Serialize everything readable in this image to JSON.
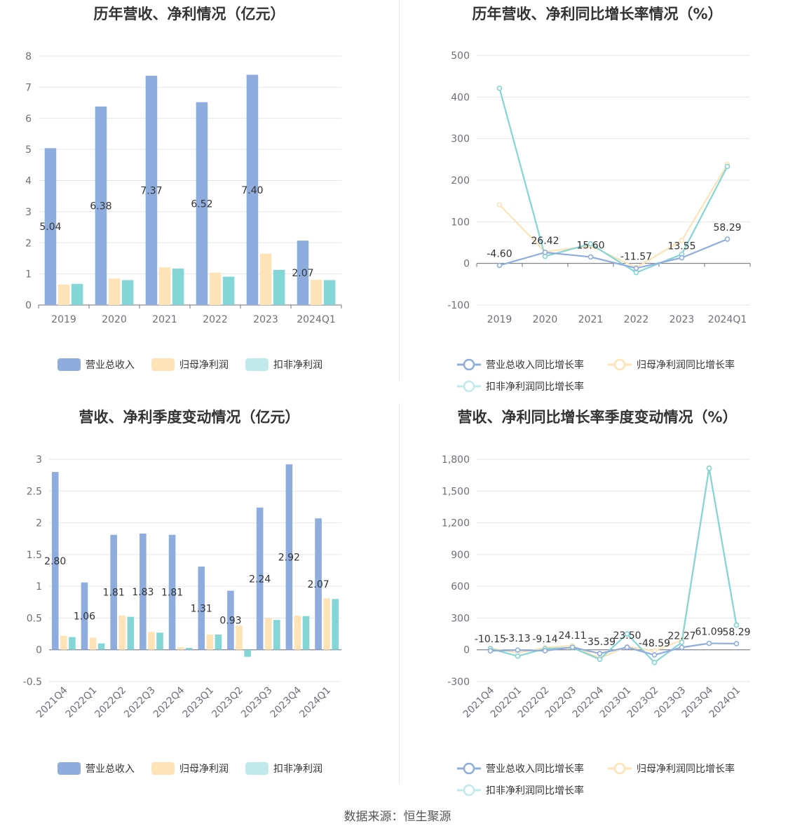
{
  "colors": {
    "revenue": "#8eadde",
    "net_profit": "#fde3b6",
    "deducted_profit": "#84d5d6",
    "grid": "#e0e6f1",
    "axis": "#6e7079"
  },
  "source": "数据来源：恒生聚源",
  "chart_data": [
    {
      "id": "annual-bar",
      "type": "bar",
      "title": "历年营收、净利情况（亿元）",
      "categories": [
        "2019",
        "2020",
        "2021",
        "2022",
        "2023",
        "2024Q1"
      ],
      "series": [
        {
          "name": "营业总收入",
          "values": [
            5.04,
            6.38,
            7.37,
            6.52,
            7.4,
            2.07
          ],
          "show_labels": true
        },
        {
          "name": "归母净利润",
          "values": [
            0.66,
            0.85,
            1.21,
            1.04,
            1.65,
            0.81
          ],
          "show_labels": false
        },
        {
          "name": "扣非净利润",
          "values": [
            0.68,
            0.8,
            1.17,
            0.91,
            1.13,
            0.8
          ],
          "show_labels": false
        }
      ],
      "labels": [
        "5.04",
        "6.38",
        "7.37",
        "6.52",
        "7.40",
        "2.07"
      ],
      "ylim": [
        0,
        8
      ],
      "yticks": [
        "0",
        "1",
        "2",
        "3",
        "4",
        "5",
        "6",
        "7",
        "8"
      ],
      "ytick_values": [
        0,
        1,
        2,
        3,
        4,
        5,
        6,
        7,
        8
      ],
      "legend_position": "bottom"
    },
    {
      "id": "annual-line",
      "type": "line",
      "title": "历年营收、净利同比增长率情况（%）",
      "categories": [
        "2019",
        "2020",
        "2021",
        "2022",
        "2023",
        "2024Q1"
      ],
      "series": [
        {
          "name": "营业总收入同比增长率",
          "values": [
            -4.6,
            26.42,
            15.6,
            -11.57,
            13.55,
            58.29
          ]
        },
        {
          "name": "归母净利润同比增长率",
          "values": [
            141,
            28,
            42,
            -10,
            55,
            238
          ]
        },
        {
          "name": "扣非净利润同比增长率",
          "values": [
            421,
            17,
            47,
            -22,
            22,
            233
          ]
        }
      ],
      "labels": [
        "-4.60",
        "26.42",
        "15.60",
        "-11.57",
        "13.55",
        "58.29"
      ],
      "ylim": [
        -100,
        500
      ],
      "yticks": [
        "-100",
        "0",
        "100",
        "200",
        "300",
        "400",
        "500"
      ],
      "ytick_values": [
        -100,
        0,
        100,
        200,
        300,
        400,
        500
      ],
      "legend_position": "bottom"
    },
    {
      "id": "quarter-bar",
      "type": "bar",
      "title": "营收、净利季度变动情况（亿元）",
      "categories": [
        "2021Q4",
        "2022Q1",
        "2022Q2",
        "2022Q3",
        "2022Q4",
        "2023Q1",
        "2023Q2",
        "2023Q3",
        "2023Q4",
        "2024Q1"
      ],
      "series": [
        {
          "name": "营业总收入",
          "values": [
            2.8,
            1.06,
            1.81,
            1.83,
            1.81,
            1.31,
            0.93,
            2.24,
            2.92,
            2.07
          ]
        },
        {
          "name": "归母净利润",
          "values": [
            0.22,
            0.19,
            0.54,
            0.28,
            0.04,
            0.24,
            0.38,
            0.5,
            0.54,
            0.81
          ]
        },
        {
          "name": "扣非净利润",
          "values": [
            0.2,
            0.1,
            0.52,
            0.27,
            0.03,
            0.24,
            -0.11,
            0.47,
            0.53,
            0.8
          ]
        }
      ],
      "labels": [
        "2.80",
        "1.06",
        "1.81",
        "1.83",
        "1.81",
        "1.31",
        "0.93",
        "2.24",
        "2.92",
        "2.07"
      ],
      "ylim": [
        -0.5,
        3
      ],
      "yticks": [
        "-0.5",
        "0",
        "0.5",
        "1",
        "1.5",
        "2",
        "2.5",
        "3"
      ],
      "ytick_values": [
        -0.5,
        0,
        0.5,
        1,
        1.5,
        2,
        2.5,
        3
      ],
      "legend_position": "bottom"
    },
    {
      "id": "quarter-line",
      "type": "line",
      "title": "营收、净利同比增长率季度变动情况（%）",
      "categories": [
        "2021Q4",
        "2022Q1",
        "2022Q2",
        "2022Q3",
        "2022Q4",
        "2023Q1",
        "2023Q2",
        "2023Q3",
        "2023Q4",
        "2024Q1"
      ],
      "series": [
        {
          "name": "营业总收入同比增长率",
          "values": [
            -10.15,
            -3.13,
            -9.14,
            24.11,
            -35.39,
            23.5,
            -48.59,
            22.27,
            61.09,
            58.29
          ]
        },
        {
          "name": "归母净利润同比增长率",
          "values": [
            15,
            -30,
            20,
            40,
            -80,
            30,
            -10,
            90,
            1720,
            238
          ]
        },
        {
          "name": "扣非净利润同比增长率",
          "values": [
            10,
            -60,
            10,
            20,
            -90,
            150,
            -120,
            70,
            1715,
            233
          ]
        }
      ],
      "labels": [
        "-10.15",
        "-3.13",
        "-9.14",
        "24.11",
        "-35.39",
        "23.50",
        "-48.59",
        "22.27",
        "61.09",
        "58.29"
      ],
      "ylim": [
        -300,
        1800
      ],
      "yticks": [
        "-300",
        "0",
        "300",
        "600",
        "900",
        "1,200",
        "1,500",
        "1,800"
      ],
      "ytick_values": [
        -300,
        0,
        300,
        600,
        900,
        1200,
        1500,
        1800
      ],
      "legend_position": "bottom"
    }
  ]
}
